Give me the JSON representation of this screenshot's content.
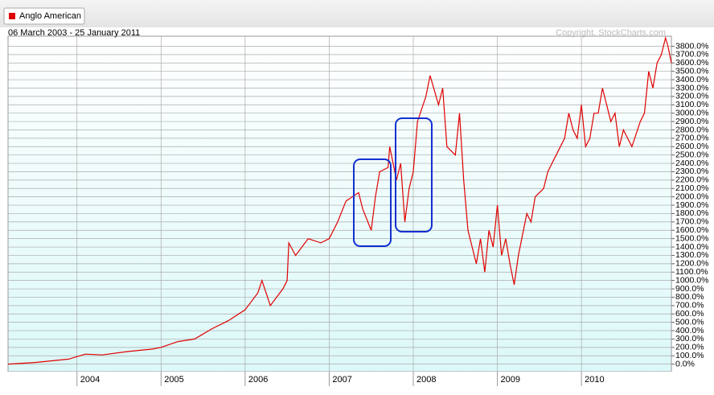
{
  "chart_data": {
    "type": "line",
    "legend": "Anglo American",
    "subtitle": "06 March 2003 - 25 January 2011",
    "copyright": "Copyright, StockCharts.com",
    "series": [
      {
        "name": "Anglo American",
        "color": "#e00000",
        "x": [
          2003.18,
          2003.5,
          2003.9,
          2004.1,
          2004.3,
          2004.6,
          2004.9,
          2005.0,
          2005.2,
          2005.4,
          2005.6,
          2005.8,
          2006.0,
          2006.15,
          2006.2,
          2006.3,
          2006.45,
          2006.5,
          2006.52,
          2006.6,
          2006.75,
          2006.9,
          2007.0,
          2007.1,
          2007.2,
          2007.35,
          2007.4,
          2007.5,
          2007.55,
          2007.6,
          2007.7,
          2007.72,
          2007.8,
          2007.85,
          2007.9,
          2007.95,
          2008.0,
          2008.05,
          2008.15,
          2008.2,
          2008.3,
          2008.35,
          2008.4,
          2008.5,
          2008.55,
          2008.6,
          2008.65,
          2008.75,
          2008.8,
          2008.85,
          2008.9,
          2008.95,
          2009.0,
          2009.05,
          2009.1,
          2009.15,
          2009.2,
          2009.25,
          2009.35,
          2009.4,
          2009.45,
          2009.55,
          2009.6,
          2009.7,
          2009.8,
          2009.85,
          2009.9,
          2009.95,
          2010.0,
          2010.05,
          2010.1,
          2010.15,
          2010.2,
          2010.25,
          2010.3,
          2010.35,
          2010.4,
          2010.45,
          2010.5,
          2010.55,
          2010.6,
          2010.7,
          2010.75,
          2010.8,
          2010.85,
          2010.9,
          2010.95,
          2011.0,
          2011.03,
          2011.07
        ],
        "values": [
          0,
          20,
          60,
          120,
          110,
          150,
          180,
          200,
          270,
          300,
          420,
          520,
          650,
          850,
          1000,
          700,
          900,
          1000,
          1450,
          1300,
          1500,
          1450,
          1500,
          1700,
          1950,
          2050,
          1850,
          1600,
          2000,
          2300,
          2350,
          2600,
          2200,
          2400,
          1700,
          2100,
          2300,
          2900,
          3200,
          3450,
          3100,
          3300,
          2600,
          2500,
          3000,
          2200,
          1600,
          1200,
          1500,
          1100,
          1600,
          1400,
          1900,
          1300,
          1500,
          1200,
          950,
          1300,
          1800,
          1700,
          2000,
          2100,
          2300,
          2500,
          2700,
          3000,
          2800,
          2700,
          3100,
          2600,
          2700,
          3000,
          3000,
          3300,
          3100,
          2900,
          3000,
          2600,
          2800,
          2700,
          2600,
          2900,
          3000,
          3500,
          3300,
          3600,
          3700,
          3900,
          3800,
          3600
        ]
      }
    ],
    "xlim": [
      2003.18,
      2011.07
    ],
    "xticks": [
      2004,
      2005,
      2006,
      2007,
      2008,
      2009,
      2010
    ],
    "ylim": [
      -90,
      3920
    ],
    "yticks": [
      {
        "value": 0,
        "label": "0.0%"
      },
      {
        "value": 100,
        "label": "100.0%"
      },
      {
        "value": 200,
        "label": "200.0%"
      },
      {
        "value": 300,
        "label": "300.0%"
      },
      {
        "value": 400,
        "label": "400.0%"
      },
      {
        "value": 500,
        "label": "500.0%"
      },
      {
        "value": 600,
        "label": "600.0%"
      },
      {
        "value": 700,
        "label": "700.0%"
      },
      {
        "value": 800,
        "label": "800.0%"
      },
      {
        "value": 900,
        "label": "900.0%"
      },
      {
        "value": 1000,
        "label": "1000.0%"
      },
      {
        "value": 1100,
        "label": "1100.0%"
      },
      {
        "value": 1200,
        "label": "1200.0%"
      },
      {
        "value": 1300,
        "label": "1300.0%"
      },
      {
        "value": 1400,
        "label": "1400.0%"
      },
      {
        "value": 1500,
        "label": "1500.0%"
      },
      {
        "value": 1600,
        "label": "1600.0%"
      },
      {
        "value": 1700,
        "label": "1700.0%"
      },
      {
        "value": 1800,
        "label": "1800.0%"
      },
      {
        "value": 1900,
        "label": "1900.0%"
      },
      {
        "value": 2000,
        "label": "2000.0%"
      },
      {
        "value": 2100,
        "label": "2100.0%"
      },
      {
        "value": 2200,
        "label": "2200.0%"
      },
      {
        "value": 2300,
        "label": "2300.0%"
      },
      {
        "value": 2400,
        "label": "2400.0%"
      },
      {
        "value": 2500,
        "label": "2500.0%"
      },
      {
        "value": 2600,
        "label": "2600.0%"
      },
      {
        "value": 2700,
        "label": "2700.0%"
      },
      {
        "value": 2800,
        "label": "2800.0%"
      },
      {
        "value": 2900,
        "label": "2900.0%"
      },
      {
        "value": 3000,
        "label": "3000.0%"
      },
      {
        "value": 3100,
        "label": "3100.0%"
      },
      {
        "value": 3200,
        "label": "3200.0%"
      },
      {
        "value": 3300,
        "label": "3300.0%"
      },
      {
        "value": 3400,
        "label": "3400.0%"
      },
      {
        "value": 3500,
        "label": "3500.0%"
      },
      {
        "value": 3600,
        "label": "3600.0%"
      },
      {
        "value": 3700,
        "label": "3700.0%"
      },
      {
        "value": 3800,
        "label": "3800.0%"
      }
    ],
    "grid": true
  }
}
